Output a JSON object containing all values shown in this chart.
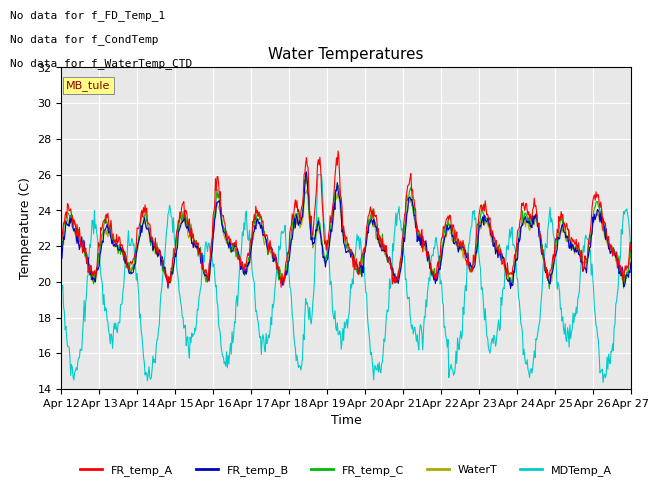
{
  "title": "Water Temperatures",
  "xlabel": "Time",
  "ylabel": "Temperature (C)",
  "ylim": [
    14,
    32
  ],
  "yticks": [
    14,
    16,
    18,
    20,
    22,
    24,
    26,
    28,
    30,
    32
  ],
  "xlim": [
    0,
    360
  ],
  "annotations": [
    "No data for f_FD_Temp_1",
    "No data for f_CondTemp",
    "No data for f_WaterTemp_CTD"
  ],
  "mb_tule_label": "MB_tule",
  "legend_entries": [
    "FR_temp_A",
    "FR_temp_B",
    "FR_temp_C",
    "WaterT",
    "MDTemp_A"
  ],
  "legend_colors": [
    "#ff0000",
    "#0000cc",
    "#00bb00",
    "#aaaa00",
    "#00cccc"
  ],
  "line_colors": {
    "FR_temp_A": "#ff0000",
    "FR_temp_B": "#0000cc",
    "FR_temp_C": "#00bb00",
    "WaterT": "#aaaa00",
    "MDTemp_A": "#00cccc"
  },
  "xtick_labels": [
    "Apr 12",
    "Apr 13",
    "Apr 14",
    "Apr 15",
    "Apr 16",
    "Apr 17",
    "Apr 18",
    "Apr 19",
    "Apr 20",
    "Apr 21",
    "Apr 22",
    "Apr 23",
    "Apr 24",
    "Apr 25",
    "Apr 26",
    "Apr 27"
  ],
  "xtick_positions": [
    0,
    24,
    48,
    72,
    96,
    120,
    144,
    168,
    192,
    216,
    240,
    264,
    288,
    312,
    336,
    360
  ],
  "plot_bg_color": "#e8e8e8",
  "fig_bg_color": "#ffffff",
  "grid_color": "#ffffff",
  "figsize": [
    6.4,
    4.8
  ],
  "dpi": 100
}
